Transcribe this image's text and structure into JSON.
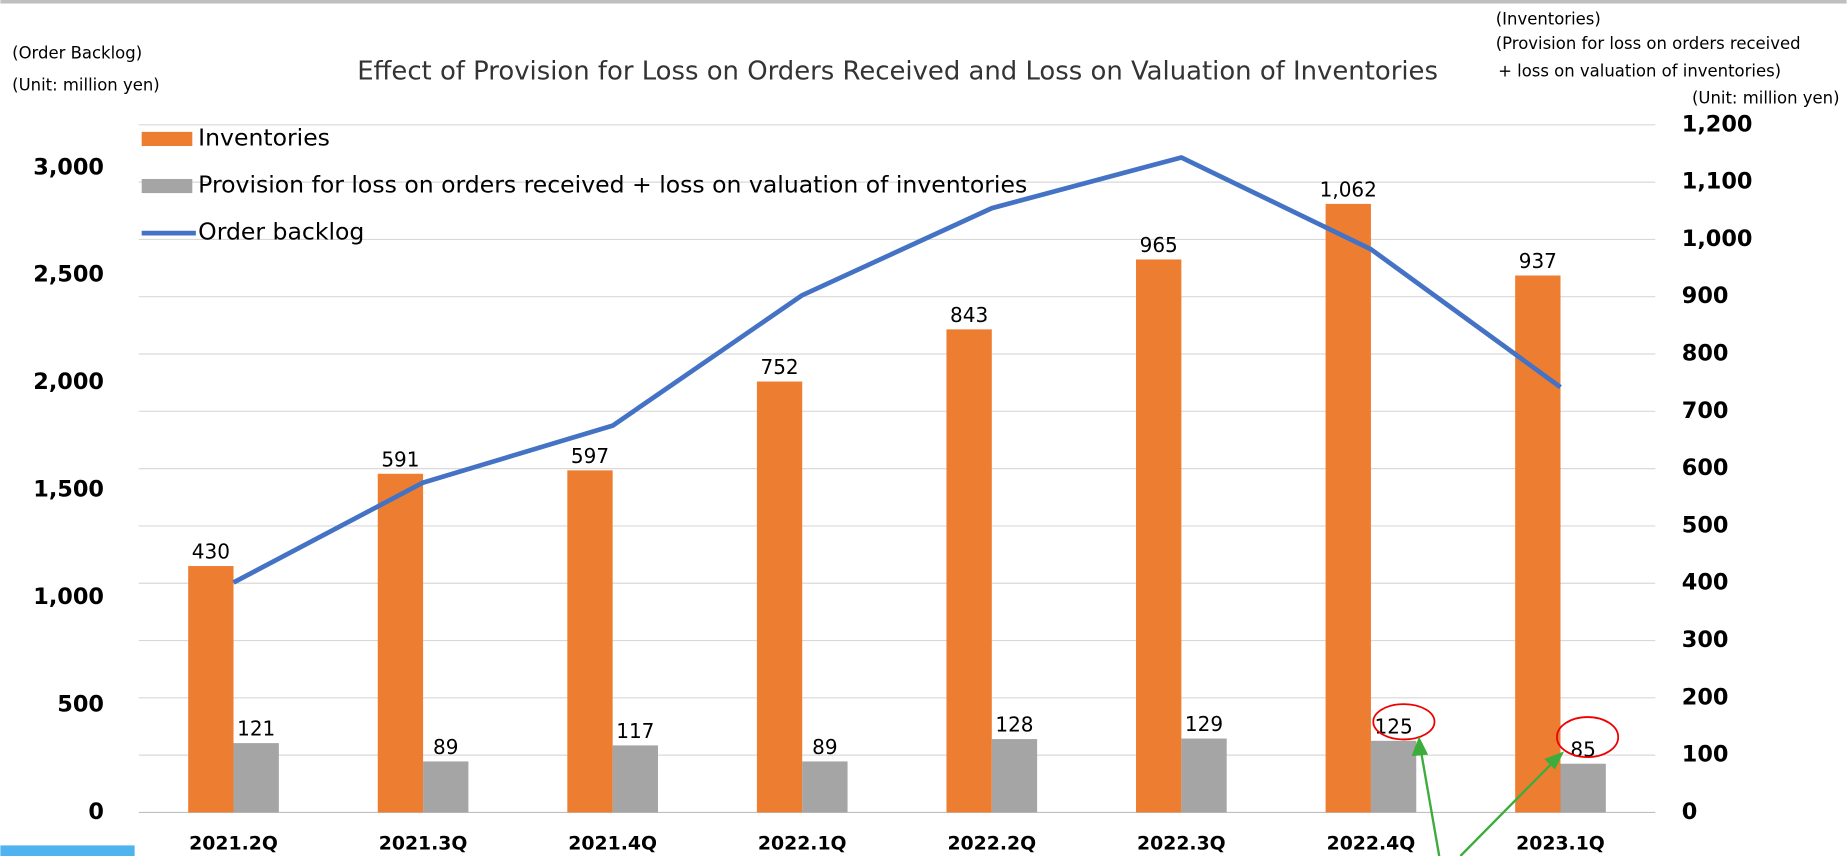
{
  "chart_data": {
    "type": "bar_line",
    "title": "Effect of Provision for Loss on Orders Received and Loss on Valuation of Inventories",
    "y_axis_label": [
      "(Order Backlog)",
      "(Unit: million yen)"
    ],
    "y2_axis_label": [
      "(Inventories)",
      "(Provision for loss on orders received",
      "+ loss on valuation of inventories)",
      "(Unit: million yen)"
    ],
    "categories": [
      "2021.2Q",
      "2021.3Q",
      "2021.4Q",
      "2022.1Q",
      "2022.2Q",
      "2022.3Q",
      "2022.4Q",
      "2023.1Q"
    ],
    "series": [
      {
        "name": "Inventories",
        "type": "bar",
        "axis": "y2",
        "color": "#ed7d31",
        "values": [
          430,
          591,
          597,
          752,
          843,
          965,
          1062,
          937
        ],
        "value_labels": [
          "430",
          "591",
          "597",
          "752",
          "843",
          "965",
          "1,062",
          "937"
        ]
      },
      {
        "name": "Provision for loss on orders received + loss on valuation of inventories",
        "type": "bar",
        "axis": "y2",
        "color": "#a5a5a5",
        "values": [
          121,
          89,
          117,
          89,
          128,
          129,
          125,
          85
        ]
      },
      {
        "name": "Order backlog",
        "type": "line",
        "axis": "y",
        "color": "#4472c4",
        "values": [
          1070,
          1535,
          1800,
          2407,
          2812,
          3048,
          2621,
          1979
        ]
      }
    ],
    "ylim": [
      0,
      3200
    ],
    "yticks": [
      0,
      500,
      {
        "value": 1000,
        "label": "1,000"
      },
      {
        "value": 1500,
        "label": "1,500"
      },
      {
        "value": 2000,
        "label": "2,000"
      },
      {
        "value": 2500,
        "label": "2,500"
      },
      {
        "value": 3000,
        "label": "3,000"
      }
    ],
    "y2lim": [
      0,
      1200
    ],
    "y2ticks": [
      0,
      100,
      200,
      300,
      400,
      500,
      600,
      700,
      800,
      900,
      {
        "value": 1000,
        "label": "1,000"
      },
      {
        "value": 1100,
        "label": "1,100"
      },
      {
        "value": 1200,
        "label": "1,200"
      }
    ],
    "grid": true,
    "legend": "upper left"
  }
}
